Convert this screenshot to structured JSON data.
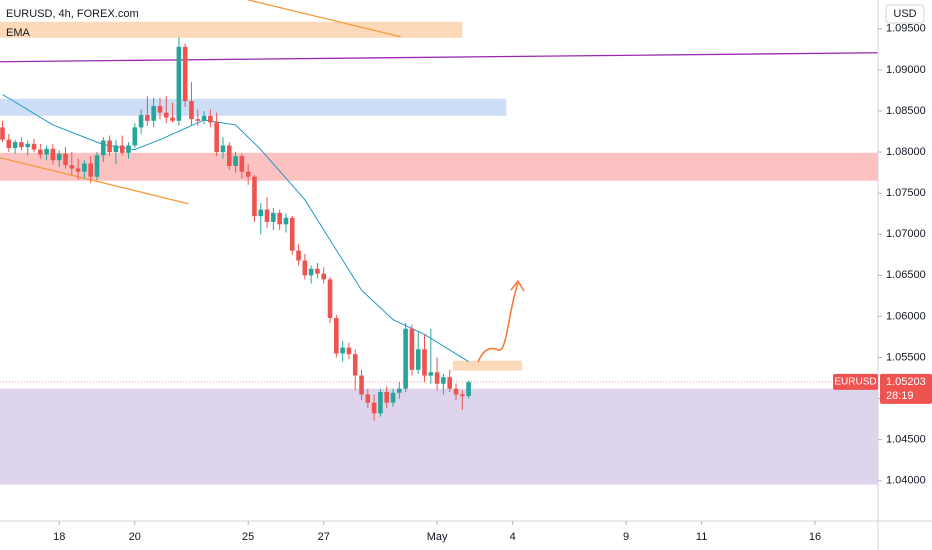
{
  "chart_data": {
    "type": "candlestick",
    "title": "EURUSD, 4h, FOREX.com",
    "currency": "USD",
    "up_color": "#26a69a",
    "down_color": "#ef5350",
    "xlim": [
      -0.4,
      139
    ],
    "ylim": [
      1.0351,
      1.0985
    ],
    "xticks": [
      {
        "value": 9,
        "label": "18"
      },
      {
        "value": 21,
        "label": "20"
      },
      {
        "value": 39,
        "label": "25"
      },
      {
        "value": 51,
        "label": "27"
      },
      {
        "value": 69,
        "label": "May"
      },
      {
        "value": 81,
        "label": "4"
      },
      {
        "value": 99,
        "label": "9"
      },
      {
        "value": 111,
        "label": "11"
      },
      {
        "value": 129,
        "label": "16"
      }
    ],
    "yticks": [
      {
        "value": 1.095,
        "label": "1.09500"
      },
      {
        "value": 1.09,
        "label": "1.09000"
      },
      {
        "value": 1.085,
        "label": "1.08500"
      },
      {
        "value": 1.08,
        "label": "1.08000"
      },
      {
        "value": 1.075,
        "label": "1.07500"
      },
      {
        "value": 1.07,
        "label": "1.07000"
      },
      {
        "value": 1.065,
        "label": "1.06500"
      },
      {
        "value": 1.06,
        "label": "1.06000"
      },
      {
        "value": 1.055,
        "label": "1.05500"
      },
      {
        "value": 1.05,
        "label": "1.05000"
      },
      {
        "value": 1.045,
        "label": "1.04500"
      },
      {
        "value": 1.04,
        "label": "1.04000"
      }
    ],
    "x": [
      0,
      1,
      2,
      3,
      4,
      5,
      6,
      7,
      8,
      9,
      10,
      11,
      12,
      13,
      14,
      15,
      16,
      17,
      18,
      19,
      20,
      21,
      22,
      23,
      24,
      25,
      26,
      27,
      28,
      29,
      30,
      31,
      32,
      33,
      34,
      35,
      36,
      37,
      38,
      39,
      40,
      41,
      42,
      43,
      44,
      45,
      46,
      47,
      48,
      49,
      50,
      51,
      52,
      53,
      54,
      55,
      56,
      57,
      58,
      59,
      60,
      61,
      62,
      63,
      64,
      65,
      66,
      67,
      68,
      69,
      70,
      71,
      72,
      73,
      74
    ],
    "candles": [
      [
        1.083,
        1.0838,
        1.0812,
        1.0815
      ],
      [
        1.0815,
        1.0822,
        1.08,
        1.0805
      ],
      [
        1.0805,
        1.0815,
        1.0798,
        1.0812
      ],
      [
        1.0812,
        1.0818,
        1.0802,
        1.0806
      ],
      [
        1.0806,
        1.0814,
        1.0796,
        1.081
      ],
      [
        1.081,
        1.0816,
        1.08,
        1.0803
      ],
      [
        1.0803,
        1.081,
        1.0792,
        1.0797
      ],
      [
        1.0797,
        1.0808,
        1.079,
        1.0804
      ],
      [
        1.0804,
        1.081,
        1.0785,
        1.079
      ],
      [
        1.079,
        1.0802,
        1.0782,
        1.0798
      ],
      [
        1.0798,
        1.0806,
        1.078,
        1.0784
      ],
      [
        1.0784,
        1.08,
        1.0772,
        1.078
      ],
      [
        1.078,
        1.0792,
        1.0766,
        1.0776
      ],
      [
        1.0776,
        1.079,
        1.0768,
        1.0786
      ],
      [
        1.0786,
        1.0795,
        1.0762,
        1.077
      ],
      [
        1.077,
        1.08,
        1.0766,
        1.0796
      ],
      [
        1.0796,
        1.0818,
        1.0788,
        1.0814
      ],
      [
        1.0814,
        1.082,
        1.0795,
        1.08
      ],
      [
        1.08,
        1.0815,
        1.0785,
        1.0808
      ],
      [
        1.0808,
        1.082,
        1.0796,
        1.0799
      ],
      [
        1.0799,
        1.0812,
        1.0792,
        1.0808
      ],
      [
        1.0808,
        1.0835,
        1.0805,
        1.083
      ],
      [
        1.083,
        1.0852,
        1.0822,
        1.0845
      ],
      [
        1.0845,
        1.0868,
        1.0832,
        1.0838
      ],
      [
        1.0838,
        1.0866,
        1.083,
        1.0856
      ],
      [
        1.0856,
        1.0866,
        1.084,
        1.0848
      ],
      [
        1.0848,
        1.0868,
        1.0835,
        1.0842
      ],
      [
        1.0842,
        1.086,
        1.0836,
        1.0838
      ],
      [
        1.0838,
        1.094,
        1.0832,
        1.0928
      ],
      [
        1.0928,
        1.0932,
        1.0855,
        1.0862
      ],
      [
        1.0862,
        1.0885,
        1.0832,
        1.084
      ],
      [
        1.084,
        1.0852,
        1.0832,
        1.0838
      ],
      [
        1.0838,
        1.085,
        1.0834,
        1.0844
      ],
      [
        1.0844,
        1.0852,
        1.083,
        1.0836
      ],
      [
        1.0836,
        1.0848,
        1.0795,
        1.08
      ],
      [
        1.08,
        1.0818,
        1.0792,
        1.0808
      ],
      [
        1.0808,
        1.0812,
        1.0778,
        1.0783
      ],
      [
        1.0783,
        1.08,
        1.0775,
        1.0795
      ],
      [
        1.0795,
        1.0798,
        1.0768,
        1.0776
      ],
      [
        1.0776,
        1.0785,
        1.076,
        1.077
      ],
      [
        1.077,
        1.0772,
        1.0715,
        1.0722
      ],
      [
        1.0722,
        1.0738,
        1.07,
        1.073
      ],
      [
        1.073,
        1.0745,
        1.0708,
        1.0715
      ],
      [
        1.0715,
        1.0732,
        1.0705,
        1.0726
      ],
      [
        1.0726,
        1.073,
        1.0705,
        1.0712
      ],
      [
        1.0712,
        1.0725,
        1.0702,
        1.072
      ],
      [
        1.072,
        1.0722,
        1.0675,
        1.068
      ],
      [
        1.068,
        1.0688,
        1.0662,
        1.0668
      ],
      [
        1.0668,
        1.0676,
        1.0645,
        1.065
      ],
      [
        1.065,
        1.0662,
        1.064,
        1.0658
      ],
      [
        1.0658,
        1.0665,
        1.0646,
        1.0652
      ],
      [
        1.0652,
        1.066,
        1.064,
        1.0645
      ],
      [
        1.0645,
        1.0648,
        1.0592,
        1.0598
      ],
      [
        1.0598,
        1.0602,
        1.055,
        1.0555
      ],
      [
        1.0555,
        1.057,
        1.0545,
        1.0562
      ],
      [
        1.0562,
        1.0568,
        1.0548,
        1.0554
      ],
      [
        1.0554,
        1.056,
        1.051,
        1.0528
      ],
      [
        1.0528,
        1.0535,
        1.0498,
        1.0505
      ],
      [
        1.0505,
        1.0512,
        1.0488,
        1.0495
      ],
      [
        1.0495,
        1.0505,
        1.0473,
        1.0482
      ],
      [
        1.0482,
        1.0512,
        1.0478,
        1.0508
      ],
      [
        1.0508,
        1.0515,
        1.0488,
        1.0495
      ],
      [
        1.0495,
        1.0512,
        1.049,
        1.0507
      ],
      [
        1.0507,
        1.052,
        1.05,
        1.0512
      ],
      [
        1.0512,
        1.0592,
        1.0508,
        1.0585
      ],
      [
        1.0585,
        1.059,
        1.0528,
        1.0535
      ],
      [
        1.0535,
        1.0582,
        1.053,
        1.056
      ],
      [
        1.056,
        1.0578,
        1.052,
        1.0528
      ],
      [
        1.0528,
        1.0585,
        1.0518,
        1.0532
      ],
      [
        1.0532,
        1.055,
        1.051,
        1.0518
      ],
      [
        1.0518,
        1.053,
        1.0505,
        1.0526
      ],
      [
        1.0526,
        1.0535,
        1.0508,
        1.0512
      ],
      [
        1.0512,
        1.0518,
        1.0498,
        1.0505
      ],
      [
        1.0505,
        1.051,
        1.0486,
        1.0503
      ],
      [
        1.0503,
        1.0522,
        1.05,
        1.052
      ]
    ],
    "ema": {
      "name": "EMA",
      "color": "#2196c9",
      "x": [
        0,
        8,
        16,
        21,
        25,
        32,
        37,
        41,
        48,
        52,
        57,
        62,
        67,
        74
      ],
      "values": [
        1.087,
        1.0833,
        1.0809,
        1.0803,
        1.0815,
        1.0839,
        1.0833,
        1.0803,
        1.0742,
        1.0693,
        1.0632,
        1.0596,
        1.0578,
        1.0545
      ]
    },
    "zones": [
      {
        "color": "#fcd3ad",
        "x": [
          -0.4,
          73
        ],
        "y": [
          1.0939,
          1.09585
        ]
      },
      {
        "color": "#c4d8f6",
        "x": [
          -0.4,
          80
        ],
        "y": [
          1.08441,
          1.08648
        ]
      },
      {
        "color": "#fbb7b6",
        "x": [
          -0.4,
          139
        ],
        "y": [
          1.07651,
          1.07991
        ]
      },
      {
        "color": "#fcd3ad",
        "x": [
          71.5,
          82.5
        ],
        "y": [
          1.05339,
          1.05461
        ]
      },
      {
        "color": "#d9cdeb",
        "x": [
          -0.4,
          139
        ],
        "y": [
          1.03953,
          1.0512
        ]
      }
    ],
    "lines": [
      {
        "color": "#f59a3c",
        "x": [
          38.9,
          63.2
        ],
        "y": [
          1.09853,
          1.09403
        ]
      },
      {
        "color": "#f59a3c",
        "x": [
          -0.4,
          29.5
        ],
        "y": [
          1.07931,
          1.07371
        ]
      },
      {
        "color": "#9c27b0",
        "x": [
          -0.4,
          139
        ],
        "y": [
          1.09099,
          1.09208
        ]
      }
    ],
    "symbol": "EURUSD",
    "last_price": 1.05203,
    "countdown": "28:19"
  }
}
